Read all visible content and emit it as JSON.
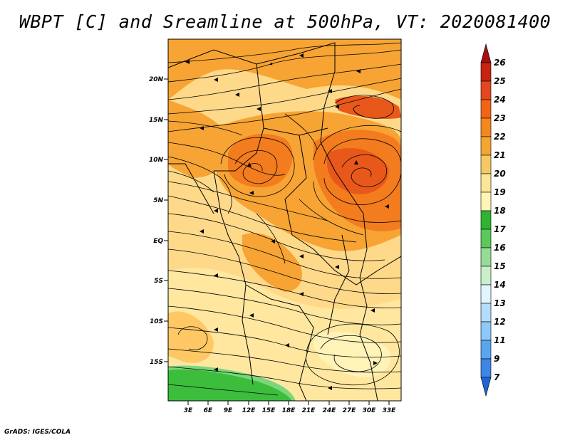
{
  "title": "WBPT [C] and Sreamline at 500hPa, VT: 2020081400",
  "credit": "GrADS: IGES/COLA",
  "map": {
    "lat_ticks": [
      "20N",
      "15N",
      "10N",
      "5N",
      "EQ",
      "5S",
      "10S",
      "15S"
    ],
    "lon_ticks": [
      "3E",
      "6E",
      "9E",
      "12E",
      "15E",
      "18E",
      "21E",
      "24E",
      "27E",
      "30E",
      "33E"
    ]
  },
  "colorbar": {
    "labels": [
      "26",
      "25",
      "24",
      "23",
      "22",
      "21",
      "20",
      "19",
      "18",
      "17",
      "16",
      "15",
      "14",
      "13",
      "12",
      "11",
      "9",
      "7"
    ],
    "colors": [
      "#a50f0f",
      "#c8230f",
      "#e6461e",
      "#f26414",
      "#f5871e",
      "#f5a532",
      "#f5c864",
      "#fae696",
      "#fff5b4",
      "#2db432",
      "#5ac85a",
      "#96dc96",
      "#c8f0c8",
      "#e1f5ff",
      "#b4dcff",
      "#8cc8fa",
      "#5aa5f0",
      "#3c87e6",
      "#1e64d2"
    ]
  },
  "map_colors": {
    "pale_yellow": "#fff0a6",
    "light_orange": "#ffc864",
    "orange": "#f7a434",
    "dark_orange": "#f27c1e",
    "red_orange": "#e8581a",
    "green": "#3cbe3c",
    "light_green": "#7dd57d"
  }
}
